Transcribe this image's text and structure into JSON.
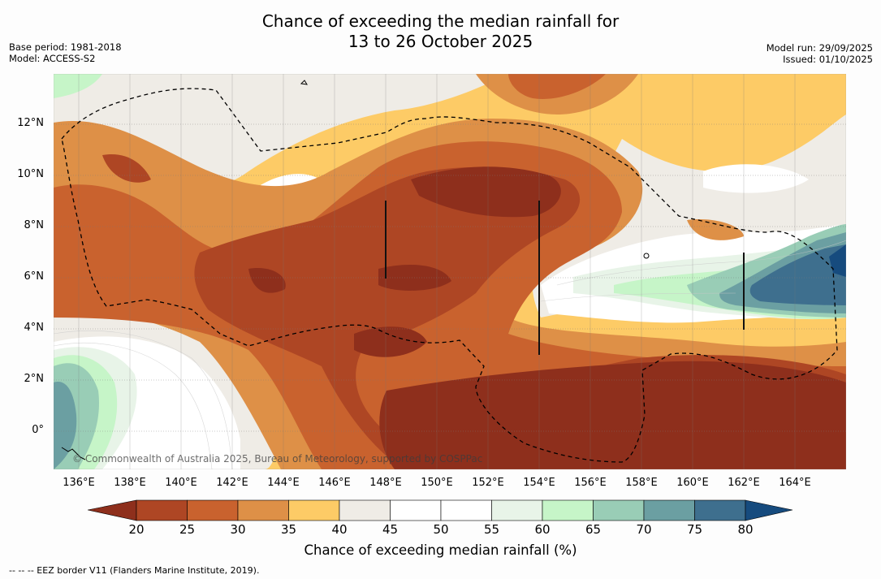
{
  "header": {
    "title_line1": "Chance of exceeding the median rainfall for",
    "title_line2": "13 to 26 October 2025",
    "base_period": "Base period: 1981-2018",
    "model": "Model: ACCESS-S2",
    "model_run": "Model run: 29/09/2025",
    "issued": "Issued: 01/10/2025"
  },
  "map": {
    "lat_labels": [
      "12°N",
      "10°N",
      "8°N",
      "6°N",
      "4°N",
      "2°N",
      "0°"
    ],
    "lon_labels": [
      "136°E",
      "138°E",
      "140°E",
      "142°E",
      "144°E",
      "146°E",
      "148°E",
      "150°E",
      "152°E",
      "154°E",
      "156°E",
      "158°E",
      "160°E",
      "162°E",
      "164°E"
    ],
    "copyright": "© Commonwealth of Australia 2025, Bureau of Meteorology, supported by COSPPac"
  },
  "colorbar": {
    "ticks": [
      "20",
      "25",
      "30",
      "35",
      "40",
      "45",
      "50",
      "55",
      "60",
      "65",
      "70",
      "75",
      "80"
    ],
    "colors": [
      "#8e2f1c",
      "#ae4624",
      "#c9622e",
      "#de9047",
      "#fdcb66",
      "#efece6",
      "#ffffff",
      "#ffffff",
      "#e8f4e8",
      "#c6f5c8",
      "#99cdb6",
      "#6b9fa2",
      "#3e6f8e",
      "#164b7e"
    ],
    "title": "Chance of exceeding median rainfall (%)"
  },
  "footer": {
    "eez_note": "--  --  -- EEZ border V11 (Flanders Marine Institute, 2019)."
  }
}
